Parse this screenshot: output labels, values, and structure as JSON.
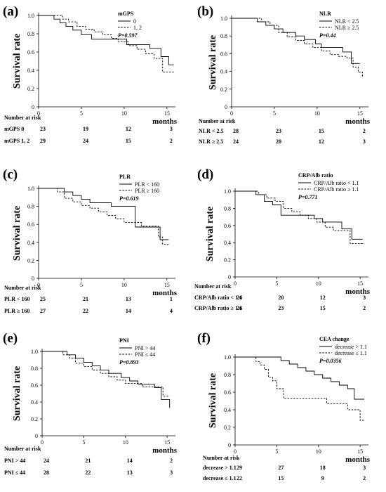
{
  "chart_data": [
    {
      "type": "line",
      "panel": "(a)",
      "ylabel": "Survival rate",
      "xlabel": "months",
      "xlim": [
        0,
        16
      ],
      "ylim": [
        0,
        1.0
      ],
      "xticks": [
        0,
        5,
        10,
        15
      ],
      "yticks": [
        "0",
        "0.2",
        "0.4",
        "0.6",
        "0.8",
        "1.0"
      ],
      "legend_title": "mGPS",
      "p_value": "P=0.597",
      "series": [
        {
          "name": "0",
          "dash": "solid",
          "x": [
            0,
            1.2,
            1.8,
            2.5,
            3.2,
            4.0,
            5.0,
            6.2,
            8.0,
            10.3,
            11.0,
            13.0,
            14.3,
            15.2,
            15.8
          ],
          "y": [
            1.0,
            1.0,
            0.96,
            0.92,
            0.88,
            0.84,
            0.79,
            0.74,
            0.74,
            0.68,
            0.68,
            0.64,
            0.55,
            0.46,
            0.46
          ]
        },
        {
          "name": "1, 2",
          "dash": "dashed",
          "x": [
            0,
            2.0,
            2.8,
            3.5,
            4.5,
            5.5,
            6.5,
            7.5,
            8.5,
            9.3,
            10.5,
            11.5,
            12.5,
            13.5,
            14.5,
            15.8
          ],
          "y": [
            1.0,
            1.0,
            0.96,
            0.93,
            0.88,
            0.85,
            0.82,
            0.79,
            0.75,
            0.71,
            0.67,
            0.63,
            0.58,
            0.53,
            0.38,
            0.38
          ]
        }
      ],
      "risk_title": "Number at risk",
      "risk_rows": [
        {
          "label": "mGPS 0",
          "values": [
            "23",
            "19",
            "12",
            "3"
          ]
        },
        {
          "label": "mGPS 1, 2",
          "values": [
            "29",
            "24",
            "15",
            "2"
          ]
        }
      ]
    },
    {
      "type": "line",
      "panel": "(b)",
      "ylabel": "Survival rate",
      "xlabel": "months",
      "xlim": [
        0,
        16
      ],
      "ylim": [
        0,
        1.0
      ],
      "xticks": [
        0,
        5,
        10,
        15
      ],
      "yticks": [
        "0",
        "0.2",
        "0.4",
        "0.6",
        "0.8",
        "1.0"
      ],
      "legend_title": "NLR",
      "p_value": "P=0.44",
      "series": [
        {
          "name": "NLR < 2.5",
          "dash": "solid",
          "x": [
            0,
            2.2,
            3.0,
            4.0,
            5.0,
            6.0,
            7.5,
            8.5,
            9.8,
            10.5,
            12.0,
            13.0,
            14.0,
            15.0
          ],
          "y": [
            1.0,
            1.0,
            0.96,
            0.92,
            0.88,
            0.84,
            0.8,
            0.76,
            0.71,
            0.67,
            0.67,
            0.62,
            0.49,
            0.49
          ]
        },
        {
          "name": "NLR ≥ 2.5",
          "dash": "dashed",
          "x": [
            0,
            2.8,
            3.5,
            4.5,
            5.5,
            6.5,
            7.5,
            8.5,
            9.5,
            10.5,
            11.5,
            12.5,
            13.5,
            14.2,
            14.8,
            15.3
          ],
          "y": [
            1.0,
            1.0,
            0.96,
            0.92,
            0.84,
            0.79,
            0.75,
            0.71,
            0.67,
            0.63,
            0.59,
            0.57,
            0.55,
            0.45,
            0.39,
            0.33
          ]
        }
      ],
      "risk_title": "Number at risk",
      "risk_rows": [
        {
          "label": "NLR < 2.5",
          "values": [
            "28",
            "23",
            "15",
            "2"
          ]
        },
        {
          "label": "NLR ≥ 2.5",
          "values": [
            "24",
            "20",
            "12",
            "3"
          ]
        }
      ]
    },
    {
      "type": "line",
      "panel": "(c)",
      "ylabel": "Survival rate",
      "xlabel": "months",
      "xlim": [
        0,
        16
      ],
      "ylim": [
        0,
        1.0
      ],
      "xticks": [
        0,
        5,
        10,
        15
      ],
      "yticks": [
        "0",
        "0.2",
        "0.4",
        "0.6",
        "0.8",
        "1.0"
      ],
      "legend_title": "PLR",
      "p_value": "P=0.619",
      "series": [
        {
          "name": "PLR < 160",
          "dash": "solid",
          "x": [
            0,
            2.0,
            3.0,
            4.0,
            5.0,
            6.0,
            7.0,
            8.5,
            10.8,
            11.3,
            12.5,
            13.5,
            14.2,
            15.2
          ],
          "y": [
            1.0,
            1.0,
            0.96,
            0.92,
            0.88,
            0.84,
            0.84,
            0.8,
            0.8,
            0.57,
            0.57,
            0.57,
            0.43,
            0.43
          ]
        },
        {
          "name": "PLR ≥ 160",
          "dash": "dashed",
          "x": [
            0,
            1.5,
            2.2,
            3.0,
            4.0,
            5.0,
            6.0,
            7.0,
            8.0,
            9.0,
            10.0,
            11.0,
            12.0,
            13.0,
            14.0,
            14.5,
            15.2
          ],
          "y": [
            1.0,
            1.0,
            0.96,
            0.89,
            0.85,
            0.81,
            0.78,
            0.74,
            0.7,
            0.66,
            0.62,
            0.62,
            0.58,
            0.58,
            0.46,
            0.38,
            0.38
          ]
        }
      ],
      "risk_title": "Number at risk",
      "risk_rows": [
        {
          "label": "PLR < 160",
          "values": [
            "25",
            "21",
            "13",
            "1"
          ]
        },
        {
          "label": "PLR ≥ 160",
          "values": [
            "27",
            "22",
            "14",
            "4"
          ]
        }
      ]
    },
    {
      "type": "line",
      "panel": "(d)",
      "ylabel": "Survival rate",
      "xlabel": "months",
      "xlim": [
        0,
        16
      ],
      "ylim": [
        0,
        1.0
      ],
      "xticks": [
        0,
        5,
        10,
        15
      ],
      "yticks": [
        "0",
        "0.2",
        "0.4",
        "0.6",
        "0.8",
        "1.0"
      ],
      "legend_title": "CRP/Alb ratio",
      "p_value": "P=0.771",
      "series": [
        {
          "name": "CRP/Alb ratio < 1.1",
          "dash": "solid",
          "x": [
            0,
            1.5,
            2.5,
            3.5,
            4.5,
            5.5,
            7.5,
            9.5,
            10.5,
            11.5,
            12.8,
            14.0,
            15.3
          ],
          "y": [
            1.0,
            1.0,
            0.96,
            0.88,
            0.84,
            0.72,
            0.72,
            0.68,
            0.64,
            0.64,
            0.56,
            0.44,
            0.44
          ]
        },
        {
          "name": "CRP/Alb ratio ≥ 1.1",
          "dash": "dashed",
          "x": [
            0,
            1.8,
            2.8,
            3.8,
            4.8,
            5.8,
            6.8,
            7.8,
            8.8,
            9.8,
            10.8,
            11.8,
            13.0,
            13.8,
            15.5
          ],
          "y": [
            1.0,
            1.0,
            0.96,
            0.92,
            0.88,
            0.8,
            0.76,
            0.72,
            0.68,
            0.64,
            0.58,
            0.54,
            0.54,
            0.39,
            0.39
          ]
        }
      ],
      "risk_title": "Number at risk",
      "risk_rows": [
        {
          "label": "CRP/Alb ratio < 1.1",
          "values": [
            "26",
            "20",
            "12",
            "3"
          ]
        },
        {
          "label": "CRP/Alb ratio ≥ 1.1",
          "values": [
            "26",
            "23",
            "15",
            "2"
          ]
        }
      ]
    },
    {
      "type": "line",
      "panel": "(e)",
      "ylabel": "Survival rate",
      "xlabel": "months",
      "xlim": [
        0,
        16
      ],
      "ylim": [
        0,
        1.0
      ],
      "xticks": [
        0,
        5,
        10,
        15
      ],
      "yticks": [
        "0",
        "0.2",
        "0.4",
        "0.6",
        "0.8",
        "1.0"
      ],
      "legend_title": "PNI",
      "p_value": "P=0.893",
      "series": [
        {
          "name": "PNI > 44",
          "dash": "solid",
          "x": [
            0,
            2.2,
            3.0,
            4.0,
            5.0,
            6.0,
            7.0,
            8.0,
            9.5,
            10.5,
            11.5,
            12.5,
            13.5,
            14.3,
            15.3
          ],
          "y": [
            1.0,
            1.0,
            0.96,
            0.92,
            0.87,
            0.83,
            0.78,
            0.74,
            0.69,
            0.65,
            0.61,
            0.61,
            0.57,
            0.43,
            0.33
          ]
        },
        {
          "name": "PNI ≤ 44",
          "dash": "dashed",
          "x": [
            0,
            1.8,
            2.5,
            3.3,
            4.0,
            5.0,
            6.0,
            7.0,
            8.0,
            9.0,
            10.0,
            11.0,
            12.0,
            13.5,
            14.5,
            15.3
          ],
          "y": [
            1.0,
            1.0,
            0.96,
            0.92,
            0.86,
            0.82,
            0.78,
            0.74,
            0.7,
            0.66,
            0.62,
            0.62,
            0.58,
            0.58,
            0.47,
            0.47
          ]
        }
      ],
      "risk_title": "Number at risk",
      "risk_rows": [
        {
          "label": "PNI > 44",
          "values": [
            "24",
            "21",
            "14",
            "2"
          ]
        },
        {
          "label": "PNI ≤ 44",
          "values": [
            "28",
            "22",
            "13",
            "3"
          ]
        }
      ]
    },
    {
      "type": "line",
      "panel": "(f)",
      "ylabel": "Survival rate",
      "xlabel": "months",
      "xlim": [
        0,
        16
      ],
      "ylim": [
        0,
        1.0
      ],
      "xticks": [
        0,
        5,
        10,
        15
      ],
      "yticks": [
        "0",
        "0.2",
        "0.4",
        "0.6",
        "0.8",
        "1.0"
      ],
      "legend_title": "CEA change",
      "p_value": "P=0.0356",
      "series": [
        {
          "name": "decrease > 1.1",
          "dash": "solid",
          "x": [
            0,
            4.5,
            5.5,
            6.5,
            7.5,
            8.5,
            9.5,
            10.5,
            11.5,
            12.5,
            13.5,
            14.3,
            15.5
          ],
          "y": [
            1.0,
            1.0,
            0.96,
            0.92,
            0.88,
            0.84,
            0.8,
            0.76,
            0.72,
            0.68,
            0.64,
            0.52,
            0.52
          ]
        },
        {
          "name": "decrease ≤ 1.1",
          "dash": "dashed",
          "x": [
            0,
            2.0,
            2.5,
            3.0,
            3.5,
            4.0,
            4.5,
            5.0,
            5.8,
            10.0,
            11.0,
            12.5,
            13.5,
            14.5,
            15.0,
            15.5
          ],
          "y": [
            1.0,
            1.0,
            0.95,
            0.91,
            0.86,
            0.77,
            0.73,
            0.64,
            0.53,
            0.53,
            0.47,
            0.47,
            0.4,
            0.4,
            0.28,
            0.28
          ]
        }
      ],
      "risk_title": "Number at risk",
      "risk_rows": [
        {
          "label": "decrease > 1.1",
          "values": [
            "29",
            "27",
            "18",
            "3"
          ]
        },
        {
          "label": "decrease ≤ 1.1",
          "values": [
            "22",
            "15",
            "9",
            "2"
          ]
        }
      ]
    }
  ]
}
